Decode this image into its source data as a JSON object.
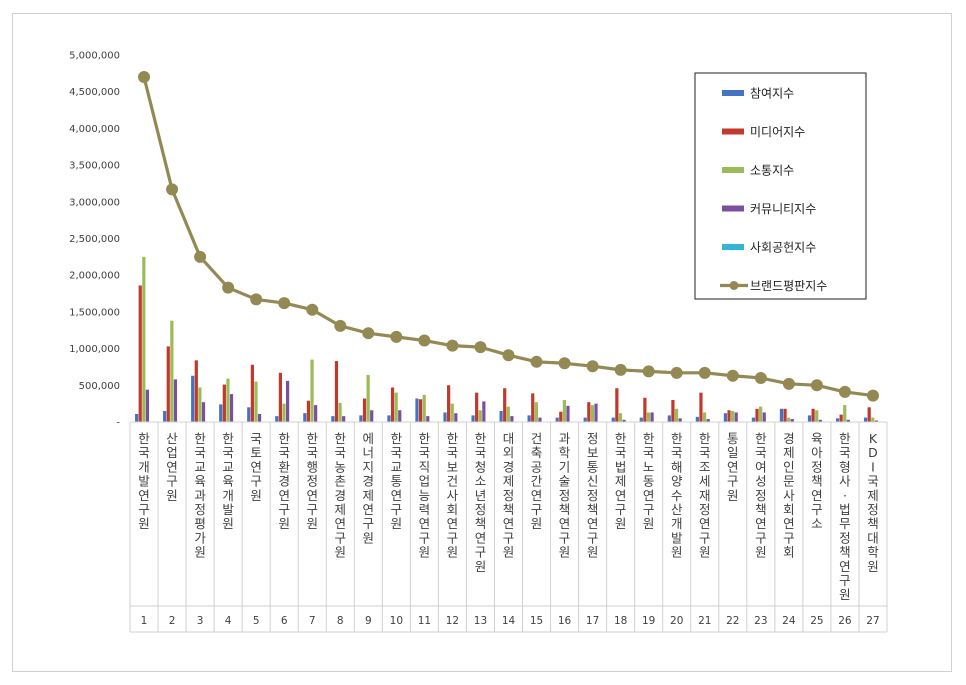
{
  "chart_data": {
    "type": "bar",
    "y_tick_labels": [
      "-",
      "500,000",
      "1,000,000",
      "1,500,000",
      "2,000,000",
      "2,500,000",
      "3,000,000",
      "3,500,000",
      "4,000,000",
      "4,500,000",
      "5,000,000"
    ],
    "ylim": [
      0,
      5000000
    ],
    "legend_placement": "top-right",
    "grid": false,
    "categories": [
      "한국개발연구원",
      "산업연구원",
      "한국교육과정평가원",
      "한국교육개발원",
      "국토연구원",
      "한국환경연구원",
      "한국행정연구원",
      "한국농촌경제연구원",
      "에너지경제연구원",
      "한국교통연구원",
      "한국직업능력연구원",
      "한국보건사회연구원",
      "한국청소년정책연구원",
      "대외경제정책연구원",
      "건축공간연구원",
      "과학기술정책연구원",
      "정보통신정책연구원",
      "한국법제연구원",
      "한국노동연구원",
      "한국해양수산개발원",
      "한국조세재정연구원",
      "통일연구원",
      "한국여성정책연구원",
      "경제인문사회연구회",
      "육아정책연구소",
      "한국형사·법무정책연구원",
      "KDI국제정책대학원"
    ],
    "rank_numbers": [
      "1",
      "2",
      "3",
      "4",
      "5",
      "6",
      "7",
      "8",
      "9",
      "10",
      "11",
      "12",
      "13",
      "14",
      "15",
      "16",
      "17",
      "18",
      "19",
      "20",
      "21",
      "22",
      "23",
      "24",
      "25",
      "26",
      "27"
    ],
    "series": [
      {
        "name": "참여지수",
        "color": "#4472C4",
        "values": [
          110000,
          150000,
          630000,
          240000,
          200000,
          80000,
          120000,
          80000,
          90000,
          90000,
          320000,
          130000,
          90000,
          150000,
          90000,
          60000,
          60000,
          60000,
          60000,
          90000,
          70000,
          120000,
          60000,
          180000,
          90000,
          50000,
          60000
        ]
      },
      {
        "name": "미디어지수",
        "color": "#C0392B",
        "values": [
          1860000,
          1030000,
          840000,
          510000,
          780000,
          670000,
          290000,
          830000,
          320000,
          470000,
          310000,
          500000,
          400000,
          460000,
          390000,
          140000,
          270000,
          460000,
          330000,
          300000,
          400000,
          160000,
          180000,
          180000,
          180000,
          100000,
          200000
        ]
      },
      {
        "name": "소통지수",
        "color": "#9BBB59",
        "values": [
          2250000,
          1380000,
          470000,
          590000,
          550000,
          250000,
          850000,
          260000,
          640000,
          400000,
          370000,
          250000,
          160000,
          210000,
          270000,
          300000,
          230000,
          120000,
          130000,
          180000,
          130000,
          150000,
          210000,
          60000,
          160000,
          230000,
          60000
        ]
      },
      {
        "name": "커뮤니티지수",
        "color": "#7B4FA0",
        "values": [
          440000,
          580000,
          270000,
          380000,
          110000,
          560000,
          230000,
          80000,
          160000,
          160000,
          80000,
          120000,
          280000,
          80000,
          60000,
          220000,
          250000,
          30000,
          130000,
          50000,
          40000,
          130000,
          130000,
          40000,
          30000,
          30000,
          20000
        ]
      },
      {
        "name": "사회공헌지수",
        "color": "#31B6D8",
        "values": [
          5000,
          5000,
          5000,
          5000,
          5000,
          5000,
          5000,
          5000,
          5000,
          5000,
          5000,
          5000,
          5000,
          5000,
          5000,
          5000,
          5000,
          5000,
          5000,
          5000,
          5000,
          5000,
          5000,
          5000,
          5000,
          5000,
          5000
        ]
      },
      {
        "name": "브랜드평판지수",
        "color": "#938953",
        "type": "line",
        "values": [
          4700000,
          3170000,
          2250000,
          1830000,
          1670000,
          1620000,
          1530000,
          1310000,
          1210000,
          1160000,
          1110000,
          1040000,
          1020000,
          910000,
          820000,
          800000,
          760000,
          710000,
          690000,
          670000,
          670000,
          630000,
          600000,
          520000,
          500000,
          410000,
          360000
        ]
      }
    ]
  }
}
